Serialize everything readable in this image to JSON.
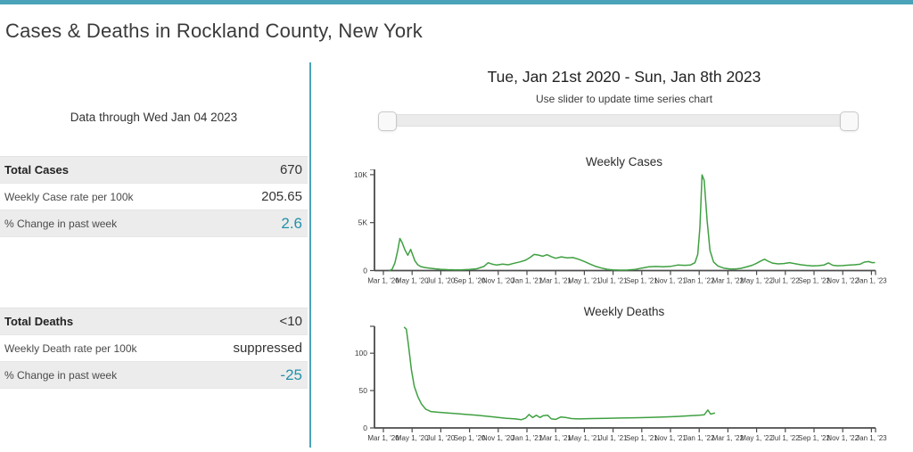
{
  "page": {
    "title": "Cases & Deaths in Rockland County, New York",
    "accent_color": "#4aa3b8",
    "teal_text_color": "#2191a9",
    "line_color": "#3fa041"
  },
  "left_panel": {
    "data_through": "Data through Wed Jan 04 2023",
    "cases": {
      "rows": [
        {
          "label": "Total Cases",
          "value": "670"
        },
        {
          "label": "Weekly Case rate per 100k",
          "value": "205.65"
        },
        {
          "label": "% Change in past week",
          "value": "2.6"
        }
      ]
    },
    "deaths": {
      "rows": [
        {
          "label": "Total Deaths",
          "value": "<10"
        },
        {
          "label": "Weekly Death rate per 100k",
          "value": "suppressed"
        },
        {
          "label": "% Change in past week",
          "value": "-25"
        }
      ]
    }
  },
  "right_panel": {
    "date_range": "Tue, Jan 21st 2020 - Sun, Jan 8th 2023",
    "slider_hint": "Use slider to update time series chart"
  },
  "chart_data": [
    {
      "type": "line",
      "title": "Weekly Cases",
      "x_unit": "months since Mar 1, 2020",
      "x_tick_months": [
        0,
        2,
        4,
        6,
        8,
        10,
        12,
        14,
        16,
        18,
        20,
        22,
        24,
        26,
        28,
        30,
        32,
        34
      ],
      "x_tick_labels": [
        "Mar 1, '20",
        "May 1, '20",
        "Jul 1, '20",
        "Sep 1, '20",
        "Nov 1, '20",
        "Jan 1, '21",
        "Mar 1, '21",
        "May 1, '21",
        "Jul 1, '21",
        "Sep 1, '21",
        "Nov 1, '21",
        "Jan 1, '22",
        "Mar 1, '22",
        "May 1, '22",
        "Jul 1, '22",
        "Sep 1, '22",
        "Nov 1, '22",
        "Jan 1, '23"
      ],
      "ylim": [
        0,
        10550
      ],
      "y_ticks": [
        {
          "value": 0,
          "label": "0"
        },
        {
          "value": 5000,
          "label": "5K"
        },
        {
          "value": 10000,
          "label": "10K"
        }
      ],
      "points": [
        [
          0.4,
          10
        ],
        [
          0.6,
          120
        ],
        [
          0.8,
          800
        ],
        [
          1.0,
          2100
        ],
        [
          1.15,
          3350
        ],
        [
          1.3,
          2950
        ],
        [
          1.5,
          2150
        ],
        [
          1.7,
          1600
        ],
        [
          1.9,
          2200
        ],
        [
          2.05,
          1600
        ],
        [
          2.2,
          1000
        ],
        [
          2.4,
          600
        ],
        [
          2.6,
          420
        ],
        [
          2.9,
          320
        ],
        [
          3.2,
          260
        ],
        [
          3.6,
          190
        ],
        [
          4.0,
          130
        ],
        [
          4.5,
          90
        ],
        [
          5.0,
          70
        ],
        [
          5.5,
          80
        ],
        [
          6.0,
          110
        ],
        [
          6.5,
          190
        ],
        [
          7.0,
          430
        ],
        [
          7.3,
          820
        ],
        [
          7.6,
          660
        ],
        [
          7.9,
          580
        ],
        [
          8.3,
          680
        ],
        [
          8.7,
          600
        ],
        [
          9.1,
          760
        ],
        [
          9.5,
          900
        ],
        [
          9.9,
          1080
        ],
        [
          10.2,
          1350
        ],
        [
          10.5,
          1680
        ],
        [
          10.8,
          1620
        ],
        [
          11.1,
          1500
        ],
        [
          11.4,
          1650
        ],
        [
          11.7,
          1450
        ],
        [
          12.0,
          1280
        ],
        [
          12.4,
          1430
        ],
        [
          12.8,
          1320
        ],
        [
          13.2,
          1360
        ],
        [
          13.6,
          1180
        ],
        [
          14.0,
          950
        ],
        [
          14.4,
          680
        ],
        [
          14.8,
          430
        ],
        [
          15.2,
          260
        ],
        [
          15.6,
          130
        ],
        [
          16.0,
          75
        ],
        [
          16.5,
          45
        ],
        [
          17.0,
          55
        ],
        [
          17.5,
          115
        ],
        [
          18.0,
          260
        ],
        [
          18.5,
          390
        ],
        [
          19.0,
          430
        ],
        [
          19.5,
          390
        ],
        [
          20.0,
          440
        ],
        [
          20.5,
          580
        ],
        [
          21.0,
          545
        ],
        [
          21.4,
          590
        ],
        [
          21.7,
          820
        ],
        [
          21.9,
          1700
        ],
        [
          22.05,
          4500
        ],
        [
          22.2,
          9980
        ],
        [
          22.35,
          9400
        ],
        [
          22.55,
          5200
        ],
        [
          22.75,
          2100
        ],
        [
          23.0,
          900
        ],
        [
          23.3,
          480
        ],
        [
          23.7,
          260
        ],
        [
          24.1,
          180
        ],
        [
          24.5,
          165
        ],
        [
          24.9,
          230
        ],
        [
          25.3,
          380
        ],
        [
          25.7,
          560
        ],
        [
          26.0,
          760
        ],
        [
          26.3,
          1000
        ],
        [
          26.55,
          1180
        ],
        [
          26.8,
          980
        ],
        [
          27.1,
          780
        ],
        [
          27.5,
          700
        ],
        [
          27.9,
          730
        ],
        [
          28.3,
          830
        ],
        [
          28.7,
          710
        ],
        [
          29.1,
          600
        ],
        [
          29.5,
          540
        ],
        [
          29.9,
          490
        ],
        [
          30.3,
          510
        ],
        [
          30.7,
          590
        ],
        [
          31.0,
          800
        ],
        [
          31.3,
          560
        ],
        [
          31.6,
          500
        ],
        [
          32.0,
          520
        ],
        [
          32.4,
          570
        ],
        [
          32.8,
          600
        ],
        [
          33.2,
          660
        ],
        [
          33.5,
          880
        ],
        [
          33.8,
          940
        ],
        [
          34.05,
          830
        ],
        [
          34.25,
          840
        ]
      ]
    },
    {
      "type": "line",
      "title": "Weekly Deaths",
      "x_unit": "months since Mar 1, 2020",
      "x_tick_months": [
        0,
        2,
        4,
        6,
        8,
        10,
        12,
        14,
        16,
        18,
        20,
        22,
        24,
        26,
        28,
        30,
        32,
        34
      ],
      "x_tick_labels": [
        "Mar 1, '20",
        "May 1, '20",
        "Jul 1, '20",
        "Sep 1, '20",
        "Nov 1, '20",
        "Jan 1, '21",
        "Mar 1, '21",
        "May 1, '21",
        "Jul 1, '21",
        "Sep 1, '21",
        "Nov 1, '21",
        "Jan 1, '22",
        "Mar 1, '22",
        "May 1, '22",
        "Jul 1, '22",
        "Sep 1, '22",
        "Nov 1, '22",
        "Jan 1, '23"
      ],
      "ylim": [
        0,
        136
      ],
      "y_ticks": [
        {
          "value": 0,
          "label": "0"
        },
        {
          "value": 50,
          "label": "50"
        },
        {
          "value": 100,
          "label": "100"
        }
      ],
      "points": [
        [
          1.45,
          135
        ],
        [
          1.6,
          132
        ],
        [
          1.75,
          110
        ],
        [
          1.95,
          78
        ],
        [
          2.15,
          56
        ],
        [
          2.4,
          42
        ],
        [
          2.65,
          32
        ],
        [
          2.95,
          25
        ],
        [
          3.3,
          22
        ],
        [
          3.8,
          21
        ],
        [
          4.5,
          20
        ],
        [
          5.5,
          18.5
        ],
        [
          6.5,
          17
        ],
        [
          7.5,
          15
        ],
        [
          8.5,
          13
        ],
        [
          9.2,
          12
        ],
        [
          9.6,
          11
        ],
        [
          9.9,
          13
        ],
        [
          10.15,
          18
        ],
        [
          10.4,
          14
        ],
        [
          10.65,
          17
        ],
        [
          10.9,
          14
        ],
        [
          11.15,
          16.5
        ],
        [
          11.45,
          17
        ],
        [
          11.7,
          12
        ],
        [
          12.0,
          11.5
        ],
        [
          12.35,
          14.5
        ],
        [
          12.7,
          14
        ],
        [
          13.1,
          12.5
        ],
        [
          13.6,
          12
        ],
        [
          14.5,
          12.5
        ],
        [
          15.5,
          12.8
        ],
        [
          16.5,
          13.2
        ],
        [
          17.5,
          13.6
        ],
        [
          18.5,
          14
        ],
        [
          19.5,
          14.6
        ],
        [
          20.5,
          15.4
        ],
        [
          21.3,
          16.2
        ],
        [
          22.0,
          17
        ],
        [
          22.35,
          17.5
        ],
        [
          22.6,
          24
        ],
        [
          22.8,
          18.5
        ],
        [
          23.1,
          20
        ]
      ]
    }
  ]
}
